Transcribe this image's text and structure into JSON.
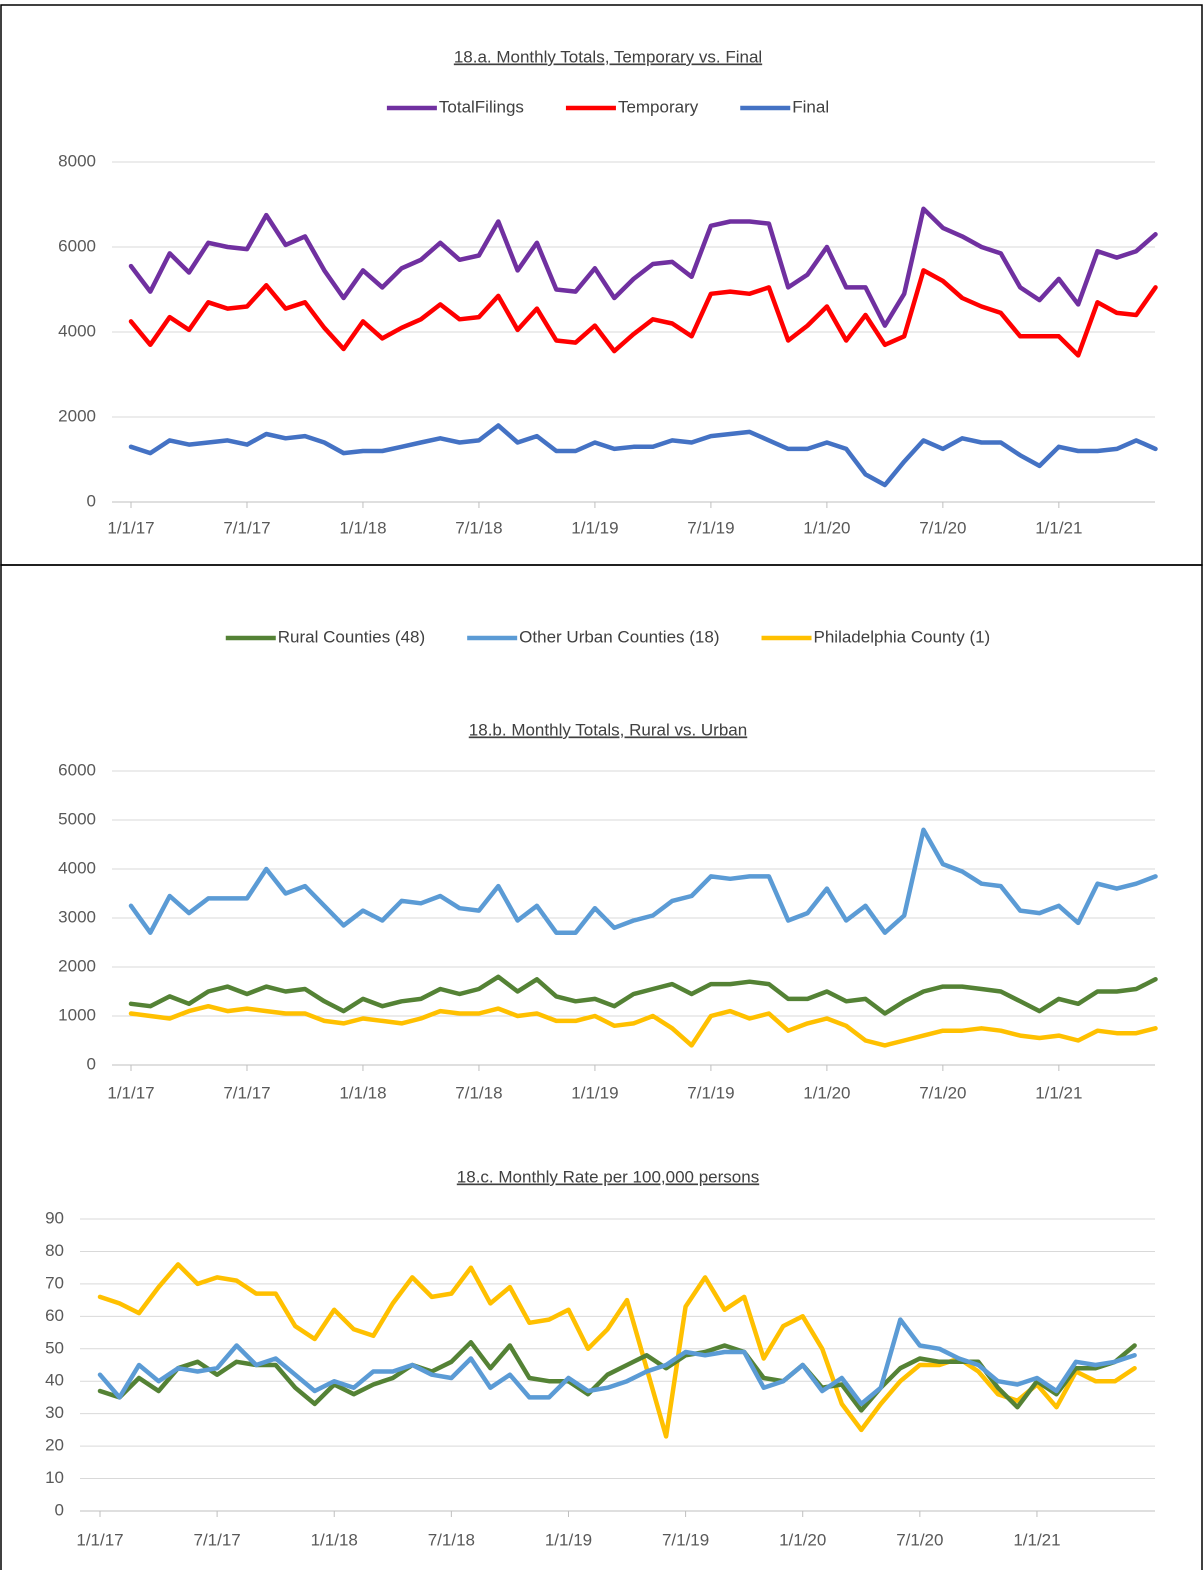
{
  "chart_data": [
    {
      "type": "line",
      "title": "18.a. Monthly Totals, Temporary vs. Final",
      "categories": [
        "1/1/17",
        null,
        null,
        null,
        null,
        null,
        "7/1/17",
        null,
        null,
        null,
        null,
        null,
        "1/1/18",
        null,
        null,
        null,
        null,
        null,
        "7/1/18",
        null,
        null,
        null,
        null,
        null,
        "1/1/19",
        null,
        null,
        null,
        null,
        null,
        "7/1/19",
        null,
        null,
        null,
        null,
        null,
        "1/1/20",
        null,
        null,
        null,
        null,
        null,
        "7/1/20",
        null,
        null,
        null,
        null,
        null,
        "1/1/21",
        null,
        null,
        null,
        null,
        null
      ],
      "ylim": [
        0,
        8000
      ],
      "yticks": [
        0,
        2000,
        4000,
        6000,
        8000
      ],
      "grid": true,
      "series": [
        {
          "name": "TotalFilings",
          "color": "#7030a0",
          "values": [
            5550,
            4950,
            5850,
            5400,
            6100,
            6000,
            5950,
            6750,
            6050,
            6250,
            5450,
            4800,
            5450,
            5050,
            5500,
            5700,
            6100,
            5700,
            5800,
            6600,
            5450,
            6100,
            5000,
            4950,
            5500,
            4800,
            5250,
            5600,
            5650,
            5300,
            6500,
            6600,
            6600,
            6550,
            5050,
            5350,
            6000,
            5050,
            5050,
            4150,
            4900,
            6900,
            6450,
            6250,
            6000,
            5850,
            5050,
            4750,
            5250,
            4650,
            5900,
            5750,
            5900,
            6300
          ]
        },
        {
          "name": "Temporary",
          "color": "#ff0000",
          "values": [
            4250,
            3700,
            4350,
            4050,
            4700,
            4550,
            4600,
            5100,
            4550,
            4700,
            4100,
            3600,
            4250,
            3850,
            4100,
            4300,
            4650,
            4300,
            4350,
            4850,
            4050,
            4550,
            3800,
            3750,
            4150,
            3550,
            3950,
            4300,
            4200,
            3900,
            4900,
            4950,
            4900,
            5050,
            3800,
            4150,
            4600,
            3800,
            4400,
            3700,
            3900,
            5450,
            5200,
            4800,
            4600,
            4450,
            3900,
            3900,
            3900,
            3450,
            4700,
            4450,
            4400,
            5050
          ]
        },
        {
          "name": "Final",
          "color": "#4472c4",
          "values": [
            1300,
            1150,
            1450,
            1350,
            1400,
            1450,
            1350,
            1600,
            1500,
            1550,
            1400,
            1150,
            1200,
            1200,
            1300,
            1400,
            1500,
            1400,
            1450,
            1800,
            1400,
            1550,
            1200,
            1200,
            1400,
            1250,
            1300,
            1300,
            1450,
            1400,
            1550,
            1600,
            1650,
            1450,
            1250,
            1250,
            1400,
            1250,
            650,
            400,
            950,
            1450,
            1250,
            1500,
            1400,
            1400,
            1100,
            850,
            1300,
            1200,
            1200,
            1250,
            1450,
            1250
          ]
        }
      ]
    },
    {
      "type": "line",
      "title": "18.b. Monthly Totals, Rural vs. Urban",
      "categories": [
        "1/1/17",
        null,
        null,
        null,
        null,
        null,
        "7/1/17",
        null,
        null,
        null,
        null,
        null,
        "1/1/18",
        null,
        null,
        null,
        null,
        null,
        "7/1/18",
        null,
        null,
        null,
        null,
        null,
        "1/1/19",
        null,
        null,
        null,
        null,
        null,
        "7/1/19",
        null,
        null,
        null,
        null,
        null,
        "1/1/20",
        null,
        null,
        null,
        null,
        null,
        "7/1/20",
        null,
        null,
        null,
        null,
        null,
        "1/1/21",
        null,
        null,
        null,
        null,
        null
      ],
      "ylim": [
        0,
        6000
      ],
      "yticks": [
        0,
        1000,
        2000,
        3000,
        4000,
        5000,
        6000
      ],
      "grid": true,
      "series": [
        {
          "name": "Rural Counties (48)",
          "color": "#548235",
          "values": [
            1250,
            1200,
            1400,
            1250,
            1500,
            1600,
            1450,
            1600,
            1500,
            1550,
            1300,
            1100,
            1350,
            1200,
            1300,
            1350,
            1550,
            1450,
            1550,
            1800,
            1500,
            1750,
            1400,
            1300,
            1350,
            1200,
            1450,
            1550,
            1650,
            1450,
            1650,
            1650,
            1700,
            1650,
            1350,
            1350,
            1500,
            1300,
            1350,
            1050,
            1300,
            1500,
            1600,
            1600,
            1550,
            1500,
            1300,
            1100,
            1350,
            1250,
            1500,
            1500,
            1550,
            1750
          ]
        },
        {
          "name": "Other Urban Counties (18)",
          "color": "#5b9bd5",
          "values": [
            3250,
            2700,
            3450,
            3100,
            3400,
            3400,
            3400,
            4000,
            3500,
            3650,
            3250,
            2850,
            3150,
            2950,
            3350,
            3300,
            3450,
            3200,
            3150,
            3650,
            2950,
            3250,
            2700,
            2700,
            3200,
            2800,
            2950,
            3050,
            3350,
            3450,
            3850,
            3800,
            3850,
            3850,
            2950,
            3100,
            3600,
            2950,
            3250,
            2700,
            3050,
            4800,
            4100,
            3950,
            3700,
            3650,
            3150,
            3100,
            3250,
            2900,
            3700,
            3600,
            3700,
            3850
          ]
        },
        {
          "name": "Philadelphia County (1)",
          "color": "#ffc000",
          "values": [
            1050,
            1000,
            950,
            1100,
            1200,
            1100,
            1150,
            1100,
            1050,
            1050,
            900,
            850,
            950,
            900,
            850,
            950,
            1100,
            1050,
            1050,
            1150,
            1000,
            1050,
            900,
            900,
            1000,
            800,
            850,
            1000,
            750,
            400,
            1000,
            1100,
            950,
            1050,
            700,
            850,
            950,
            800,
            500,
            400,
            500,
            600,
            700,
            700,
            750,
            700,
            600,
            550,
            600,
            500,
            700,
            650,
            650,
            750
          ]
        }
      ]
    },
    {
      "type": "line",
      "title": "18.c. Monthly Rate per 100,000 persons",
      "categories": [
        "1/1/17",
        null,
        null,
        null,
        null,
        null,
        "7/1/17",
        null,
        null,
        null,
        null,
        null,
        "1/1/18",
        null,
        null,
        null,
        null,
        null,
        "7/1/18",
        null,
        null,
        null,
        null,
        null,
        "1/1/19",
        null,
        null,
        null,
        null,
        null,
        "7/1/19",
        null,
        null,
        null,
        null,
        null,
        "1/1/20",
        null,
        null,
        null,
        null,
        null,
        "7/1/20",
        null,
        null,
        null,
        null,
        null,
        "1/1/21",
        null,
        null,
        null,
        null,
        null
      ],
      "ylim": [
        0,
        90
      ],
      "yticks": [
        0,
        10,
        20,
        30,
        40,
        50,
        60,
        70,
        80,
        90
      ],
      "grid": true,
      "series": [
        {
          "color": "#ffc000",
          "values": [
            66,
            64,
            61,
            69,
            76,
            70,
            72,
            71,
            67,
            67,
            57,
            53,
            62,
            56,
            54,
            64,
            72,
            66,
            67,
            75,
            64,
            69,
            58,
            59,
            62,
            50,
            56,
            65,
            44,
            23,
            63,
            72,
            62,
            66,
            47,
            57,
            60,
            50,
            33,
            25,
            33,
            40,
            45,
            45,
            47,
            43,
            36,
            34,
            39,
            32,
            43,
            40,
            40,
            44
          ]
        },
        {
          "color": "#548235",
          "values": [
            37,
            35,
            41,
            37,
            44,
            46,
            42,
            46,
            45,
            45,
            38,
            33,
            39,
            36,
            39,
            41,
            45,
            43,
            46,
            52,
            44,
            51,
            41,
            40,
            40,
            36,
            42,
            45,
            48,
            44,
            48,
            49,
            51,
            49,
            41,
            40,
            45,
            38,
            39,
            31,
            38,
            44,
            47,
            46,
            46,
            46,
            38,
            32,
            40,
            36,
            44,
            44,
            46,
            51
          ]
        },
        {
          "color": "#5b9bd5",
          "values": [
            42,
            35,
            45,
            40,
            44,
            43,
            44,
            51,
            45,
            47,
            42,
            37,
            40,
            38,
            43,
            43,
            45,
            42,
            41,
            47,
            38,
            42,
            35,
            35,
            41,
            37,
            38,
            40,
            43,
            45,
            49,
            48,
            49,
            49,
            38,
            40,
            45,
            37,
            41,
            33,
            38,
            59,
            51,
            50,
            47,
            45,
            40,
            39,
            41,
            37,
            46,
            45,
            46,
            48
          ]
        }
      ]
    }
  ]
}
